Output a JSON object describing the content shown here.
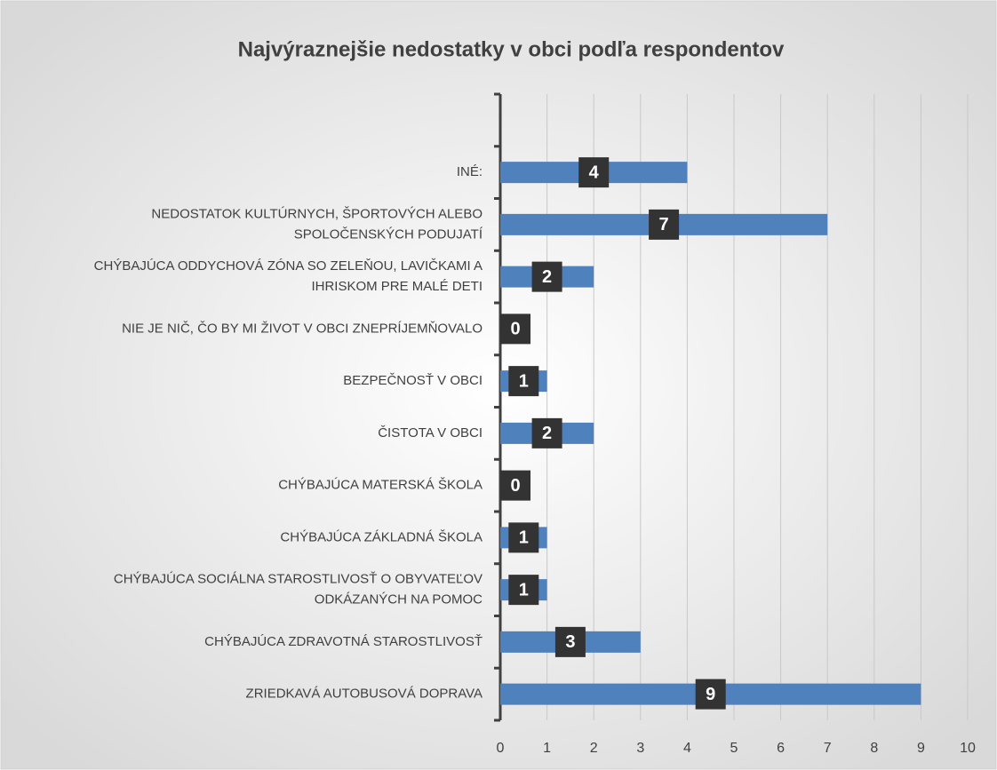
{
  "chart_data": {
    "type": "barh",
    "title": "Najvýraznejšie nedostatky v obci podľa respondentov",
    "categories": [
      null,
      "INÉ:",
      "NEDOSTATOK KULTÚRNYCH, ŠPORTOVÝCH ALEBO\nSPOLOČENSKÝCH PODUJATÍ",
      "CHÝBAJÚCA ODDYCHOVÁ ZÓNA SO ZELEŇOU, LAVIČKAMI A\nIHRISKOM PRE MALÉ DETI",
      "NIE JE NIČ, ČO BY MI ŽIVOT V OBCI ZNEPRÍJEMŇOVALO",
      "BEZPEČNOSŤ V OBCI",
      "ČISTOTA V OBCI",
      "CHÝBAJÚCA MATERSKÁ ŠKOLA",
      "CHÝBAJÚCA ZÁKLADNÁ ŠKOLA",
      "CHÝBAJÚCA SOCIÁLNA STAROSTLIVOSŤ O OBYVATEĽOV\nODKÁZANÝCH NA POMOC",
      "CHÝBAJÚCA ZDRAVOTNÁ STAROSTLIVOSŤ",
      "ZRIEDKAVÁ AUTOBUSOVÁ DOPRAVA"
    ],
    "values": [
      null,
      4,
      7,
      2,
      0,
      1,
      2,
      0,
      1,
      1,
      3,
      9
    ],
    "color": "#4f81bd",
    "xlim": [
      0,
      10
    ],
    "xticks": [
      0,
      1,
      2,
      3,
      4,
      5,
      6,
      7,
      8,
      9,
      10
    ],
    "grid": true
  }
}
